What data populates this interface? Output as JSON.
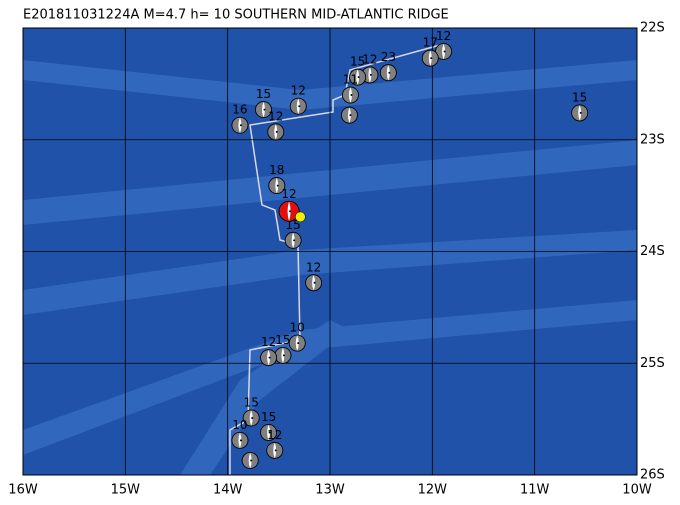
{
  "map": {
    "title": "E201811031224A M=4.7 h= 10 SOUTHERN MID-ATLANTIC RIDGE",
    "xlim": [
      -16,
      -10
    ],
    "ylim": [
      -26,
      -22
    ],
    "xticks": [
      {
        "value": -16,
        "label": "16W"
      },
      {
        "value": -15,
        "label": "15W"
      },
      {
        "value": -14,
        "label": "14W"
      },
      {
        "value": -13,
        "label": "13W"
      },
      {
        "value": -12,
        "label": "12W"
      },
      {
        "value": -11,
        "label": "11W"
      },
      {
        "value": -10,
        "label": "10W"
      }
    ],
    "yticks": [
      {
        "value": -22,
        "label": "22S"
      },
      {
        "value": -23,
        "label": "23S"
      },
      {
        "value": -24,
        "label": "24S"
      },
      {
        "value": -25,
        "label": "25S"
      },
      {
        "value": -26,
        "label": "26S"
      }
    ],
    "ocean_color": "#1f52a8",
    "ball_color": "#808080",
    "main_color": "#e01010",
    "epicenter_color": "#f0f000",
    "main_event": {
      "lon": -13.4,
      "lat": -23.64,
      "label": "12",
      "epicenter_lon": -13.29,
      "epicenter_lat": -23.69
    },
    "events": [
      {
        "lon": -11.89,
        "lat": -22.21,
        "label": "12"
      },
      {
        "lon": -12.02,
        "lat": -22.27,
        "label": "17"
      },
      {
        "lon": -12.43,
        "lat": -22.4,
        "label": "23"
      },
      {
        "lon": -12.61,
        "lat": -22.42,
        "label": "12"
      },
      {
        "lon": -12.73,
        "lat": -22.44,
        "label": "15"
      },
      {
        "lon": -12.8,
        "lat": -22.6,
        "label": "11"
      },
      {
        "lon": -12.81,
        "lat": -22.78
      },
      {
        "lon": -13.31,
        "lat": -22.7,
        "label": "12"
      },
      {
        "lon": -13.65,
        "lat": -22.73,
        "label": "15"
      },
      {
        "lon": -13.53,
        "lat": -22.93,
        "label": "12"
      },
      {
        "lon": -13.88,
        "lat": -22.87,
        "label": "16"
      },
      {
        "lon": -10.56,
        "lat": -22.76,
        "label": "15"
      },
      {
        "lon": -13.52,
        "lat": -23.41,
        "label": "18"
      },
      {
        "lon": -13.36,
        "lat": -23.9,
        "label": "15"
      },
      {
        "lon": -13.16,
        "lat": -24.28,
        "label": "12"
      },
      {
        "lon": -13.32,
        "lat": -24.82,
        "label": "10"
      },
      {
        "lon": -13.46,
        "lat": -24.93,
        "label": "15"
      },
      {
        "lon": -13.6,
        "lat": -24.95,
        "label": "12"
      },
      {
        "lon": -13.77,
        "lat": -25.49,
        "label": "15"
      },
      {
        "lon": -13.88,
        "lat": -25.69,
        "label": "10"
      },
      {
        "lon": -13.6,
        "lat": -25.62,
        "label": "15"
      },
      {
        "lon": -13.54,
        "lat": -25.78,
        "label": "12"
      },
      {
        "lon": -13.78,
        "lat": -25.87
      }
    ]
  }
}
